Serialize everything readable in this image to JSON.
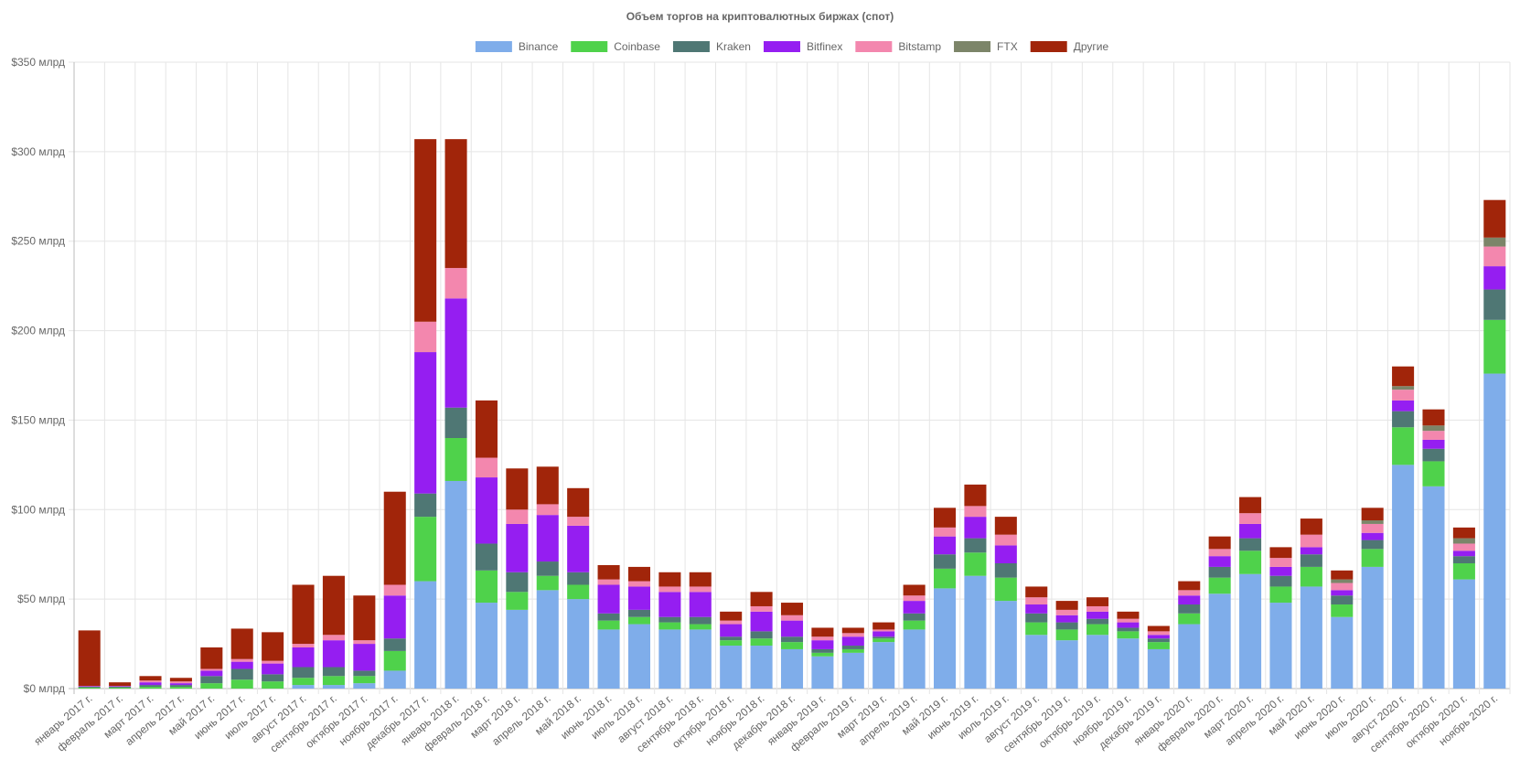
{
  "chart_data": {
    "type": "bar",
    "stacked": true,
    "title": "Объем торгов на криптовалютных биржах (спот)",
    "legend_position": "top",
    "grid": true,
    "ylim": [
      0,
      350
    ],
    "y_ticks": [
      {
        "value": 0,
        "label": "$0 млрд"
      },
      {
        "value": 50,
        "label": "$50 млрд"
      },
      {
        "value": 100,
        "label": "$100 млрд"
      },
      {
        "value": 150,
        "label": "$150 млрд"
      },
      {
        "value": 200,
        "label": "$200 млрд"
      },
      {
        "value": 250,
        "label": "$250 млрд"
      },
      {
        "value": 300,
        "label": "$300 млрд"
      },
      {
        "value": 350,
        "label": "$350 млрд"
      }
    ],
    "categories": [
      "январь 2017 г.",
      "февраль 2017 г.",
      "март 2017 г.",
      "апрель 2017 г.",
      "май 2017 г.",
      "июнь 2017 г.",
      "июль 2017 г.",
      "август 2017 г.",
      "сентябрь 2017 г.",
      "октябрь 2017 г.",
      "ноябрь 2017 г.",
      "декабрь 2017 г.",
      "январь 2018 г.",
      "февраль 2018 г.",
      "март 2018 г.",
      "апрель 2018 г.",
      "май 2018 г.",
      "июнь 2018 г.",
      "июль 2018 г.",
      "август 2018 г.",
      "сентябрь 2018 г.",
      "октябрь 2018 г.",
      "ноябрь 2018 г.",
      "декабрь 2018 г.",
      "январь 2019 г.",
      "февраль 2019 г.",
      "март 2019 г.",
      "апрель 2019 г.",
      "май 2019 г.",
      "июнь 2019 г.",
      "июль 2019 г.",
      "август 2019 г.",
      "сентябрь 2019 г.",
      "октябрь 2019 г.",
      "ноябрь 2019 г.",
      "декабрь 2019 г.",
      "январь 2020 г.",
      "февраль 2020 г.",
      "март 2020 г.",
      "апрель 2020 г.",
      "май 2020 г.",
      "июнь 2020 г.",
      "июль 2020 г.",
      "август 2020 г.",
      "сентябрь 2020 г.",
      "октябрь 2020 г.",
      "ноябрь 2020 г."
    ],
    "series": [
      {
        "name": "Binance",
        "color": "#7fadea",
        "values": [
          0,
          0,
          0,
          0,
          0,
          0,
          0,
          2,
          2,
          3,
          10,
          60,
          116,
          48,
          44,
          55,
          50,
          33,
          36,
          33,
          33,
          24,
          24,
          22,
          18,
          20,
          26,
          33,
          56,
          63,
          49,
          30,
          27,
          30,
          28,
          22,
          36,
          53,
          64,
          48,
          57,
          40,
          68,
          125,
          113,
          61,
          176
        ]
      },
      {
        "name": "Coinbase",
        "color": "#4fd24b",
        "values": [
          0.5,
          0.5,
          1,
          1,
          3,
          5,
          4,
          4,
          5,
          4,
          11,
          36,
          24,
          18,
          10,
          8,
          8,
          5,
          4,
          4,
          3,
          3,
          4,
          4,
          2,
          2,
          2,
          5,
          11,
          13,
          13,
          7,
          6,
          6,
          4,
          4,
          6,
          9,
          13,
          9,
          11,
          7,
          10,
          21,
          14,
          9,
          30
        ]
      },
      {
        "name": "Kraken",
        "color": "#4f7774",
        "values": [
          0.5,
          0.5,
          1,
          1,
          4,
          6,
          4,
          6,
          5,
          3,
          7,
          13,
          17,
          15,
          11,
          8,
          7,
          4,
          4,
          3,
          4,
          2,
          4,
          3,
          2,
          2,
          1,
          4,
          8,
          8,
          8,
          5,
          4,
          3,
          2,
          2,
          5,
          6,
          7,
          6,
          7,
          5,
          5,
          9,
          7,
          4,
          17
        ]
      },
      {
        "name": "Bitfinex",
        "color": "#951ef1",
        "values": [
          0.3,
          0.3,
          1.5,
          1,
          3,
          4,
          6,
          11,
          15,
          15,
          24,
          79,
          61,
          37,
          27,
          26,
          26,
          16,
          13,
          14,
          14,
          7,
          11,
          9,
          5,
          5,
          3,
          7,
          10,
          12,
          10,
          5,
          4,
          4,
          3,
          2,
          5,
          6,
          8,
          5,
          4,
          3,
          4,
          6,
          5,
          3,
          13
        ]
      },
      {
        "name": "Bitstamp",
        "color": "#f387ae",
        "values": [
          0.2,
          0.2,
          1,
          1,
          1,
          1.5,
          1.5,
          2,
          3,
          2,
          6,
          17,
          17,
          11,
          8,
          6,
          5,
          3,
          3,
          3,
          3,
          2,
          3,
          3,
          2,
          2,
          1,
          3,
          5,
          6,
          6,
          4,
          3,
          3,
          2,
          2,
          3,
          4,
          6,
          5,
          7,
          4,
          5,
          6,
          5,
          4,
          11
        ]
      },
      {
        "name": "FTX",
        "color": "#7c8569",
        "values": [
          0,
          0,
          0,
          0,
          0,
          0,
          0,
          0,
          0,
          0,
          0,
          0,
          0,
          0,
          0,
          0,
          0,
          0,
          0,
          0,
          0,
          0,
          0,
          0,
          0,
          0,
          0,
          0,
          0,
          0,
          0,
          0,
          0,
          0,
          0,
          0,
          0,
          0,
          0,
          0,
          0,
          2,
          2,
          2,
          3,
          3,
          5
        ]
      },
      {
        "name": "Другие",
        "color": "#a1250a",
        "values": [
          31,
          2,
          2.5,
          2,
          12,
          17,
          16,
          33,
          33,
          25,
          52,
          102,
          72,
          32,
          23,
          21,
          16,
          8,
          8,
          8,
          8,
          5,
          8,
          7,
          5,
          3,
          4,
          6,
          11,
          12,
          10,
          6,
          5,
          5,
          4,
          3,
          5,
          7,
          9,
          6,
          9,
          5,
          7,
          11,
          9,
          6,
          21
        ]
      }
    ]
  }
}
